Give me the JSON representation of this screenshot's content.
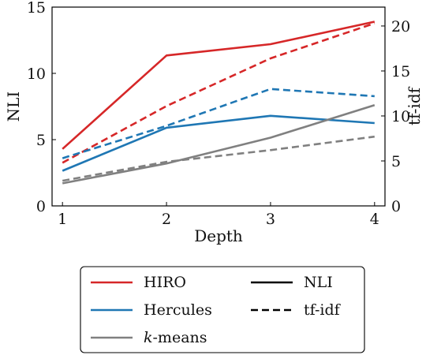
{
  "chart_data": {
    "type": "line",
    "x": [
      1,
      2,
      3,
      4
    ],
    "xticks": [
      "1",
      "2",
      "3",
      "4"
    ],
    "xlabel": "Depth",
    "y_left": {
      "label": "NLI",
      "range": [
        0,
        15
      ],
      "ticks": [
        "0",
        "5",
        "10",
        "15"
      ]
    },
    "y_right": {
      "label": "tf-idf",
      "range": [
        0,
        22.1
      ],
      "ticks": [
        "0",
        "5",
        "10",
        "15",
        "20"
      ]
    },
    "series": [
      {
        "method": "HIRO",
        "metric": "NLI",
        "axis": "left",
        "color": "#d62728",
        "dash": "solid",
        "values": [
          4.3,
          11.35,
          12.2,
          13.9
        ]
      },
      {
        "method": "Hercules",
        "metric": "NLI",
        "axis": "left",
        "color": "#1f77b4",
        "dash": "solid",
        "values": [
          2.65,
          5.9,
          6.8,
          6.25
        ]
      },
      {
        "method": "k-means",
        "metric": "NLI",
        "axis": "left",
        "color": "#808080",
        "dash": "solid",
        "values": [
          1.7,
          3.2,
          5.15,
          7.6
        ]
      },
      {
        "method": "HIRO",
        "metric": "tf-idf",
        "axis": "right",
        "color": "#d62728",
        "dash": "dashed",
        "values": [
          4.8,
          11.1,
          16.4,
          20.3
        ]
      },
      {
        "method": "Hercules",
        "metric": "tf-idf",
        "axis": "right",
        "color": "#1f77b4",
        "dash": "dashed",
        "values": [
          5.3,
          8.9,
          13.0,
          12.2
        ]
      },
      {
        "method": "k-means",
        "metric": "tf-idf",
        "axis": "right",
        "color": "#808080",
        "dash": "dashed",
        "values": [
          2.8,
          4.9,
          6.2,
          7.7
        ]
      }
    ],
    "legend": {
      "placement": "bottom",
      "methods": [
        {
          "label": "HIRO",
          "color": "#d62728"
        },
        {
          "label": "Hercules",
          "color": "#1f77b4"
        },
        {
          "label_italic": "k",
          "label_rest": "-means",
          "color": "#808080"
        }
      ],
      "styles": [
        {
          "label": "NLI",
          "dash": "solid"
        },
        {
          "label": "tf-idf",
          "dash": "dashed"
        }
      ]
    },
    "grid": false
  }
}
